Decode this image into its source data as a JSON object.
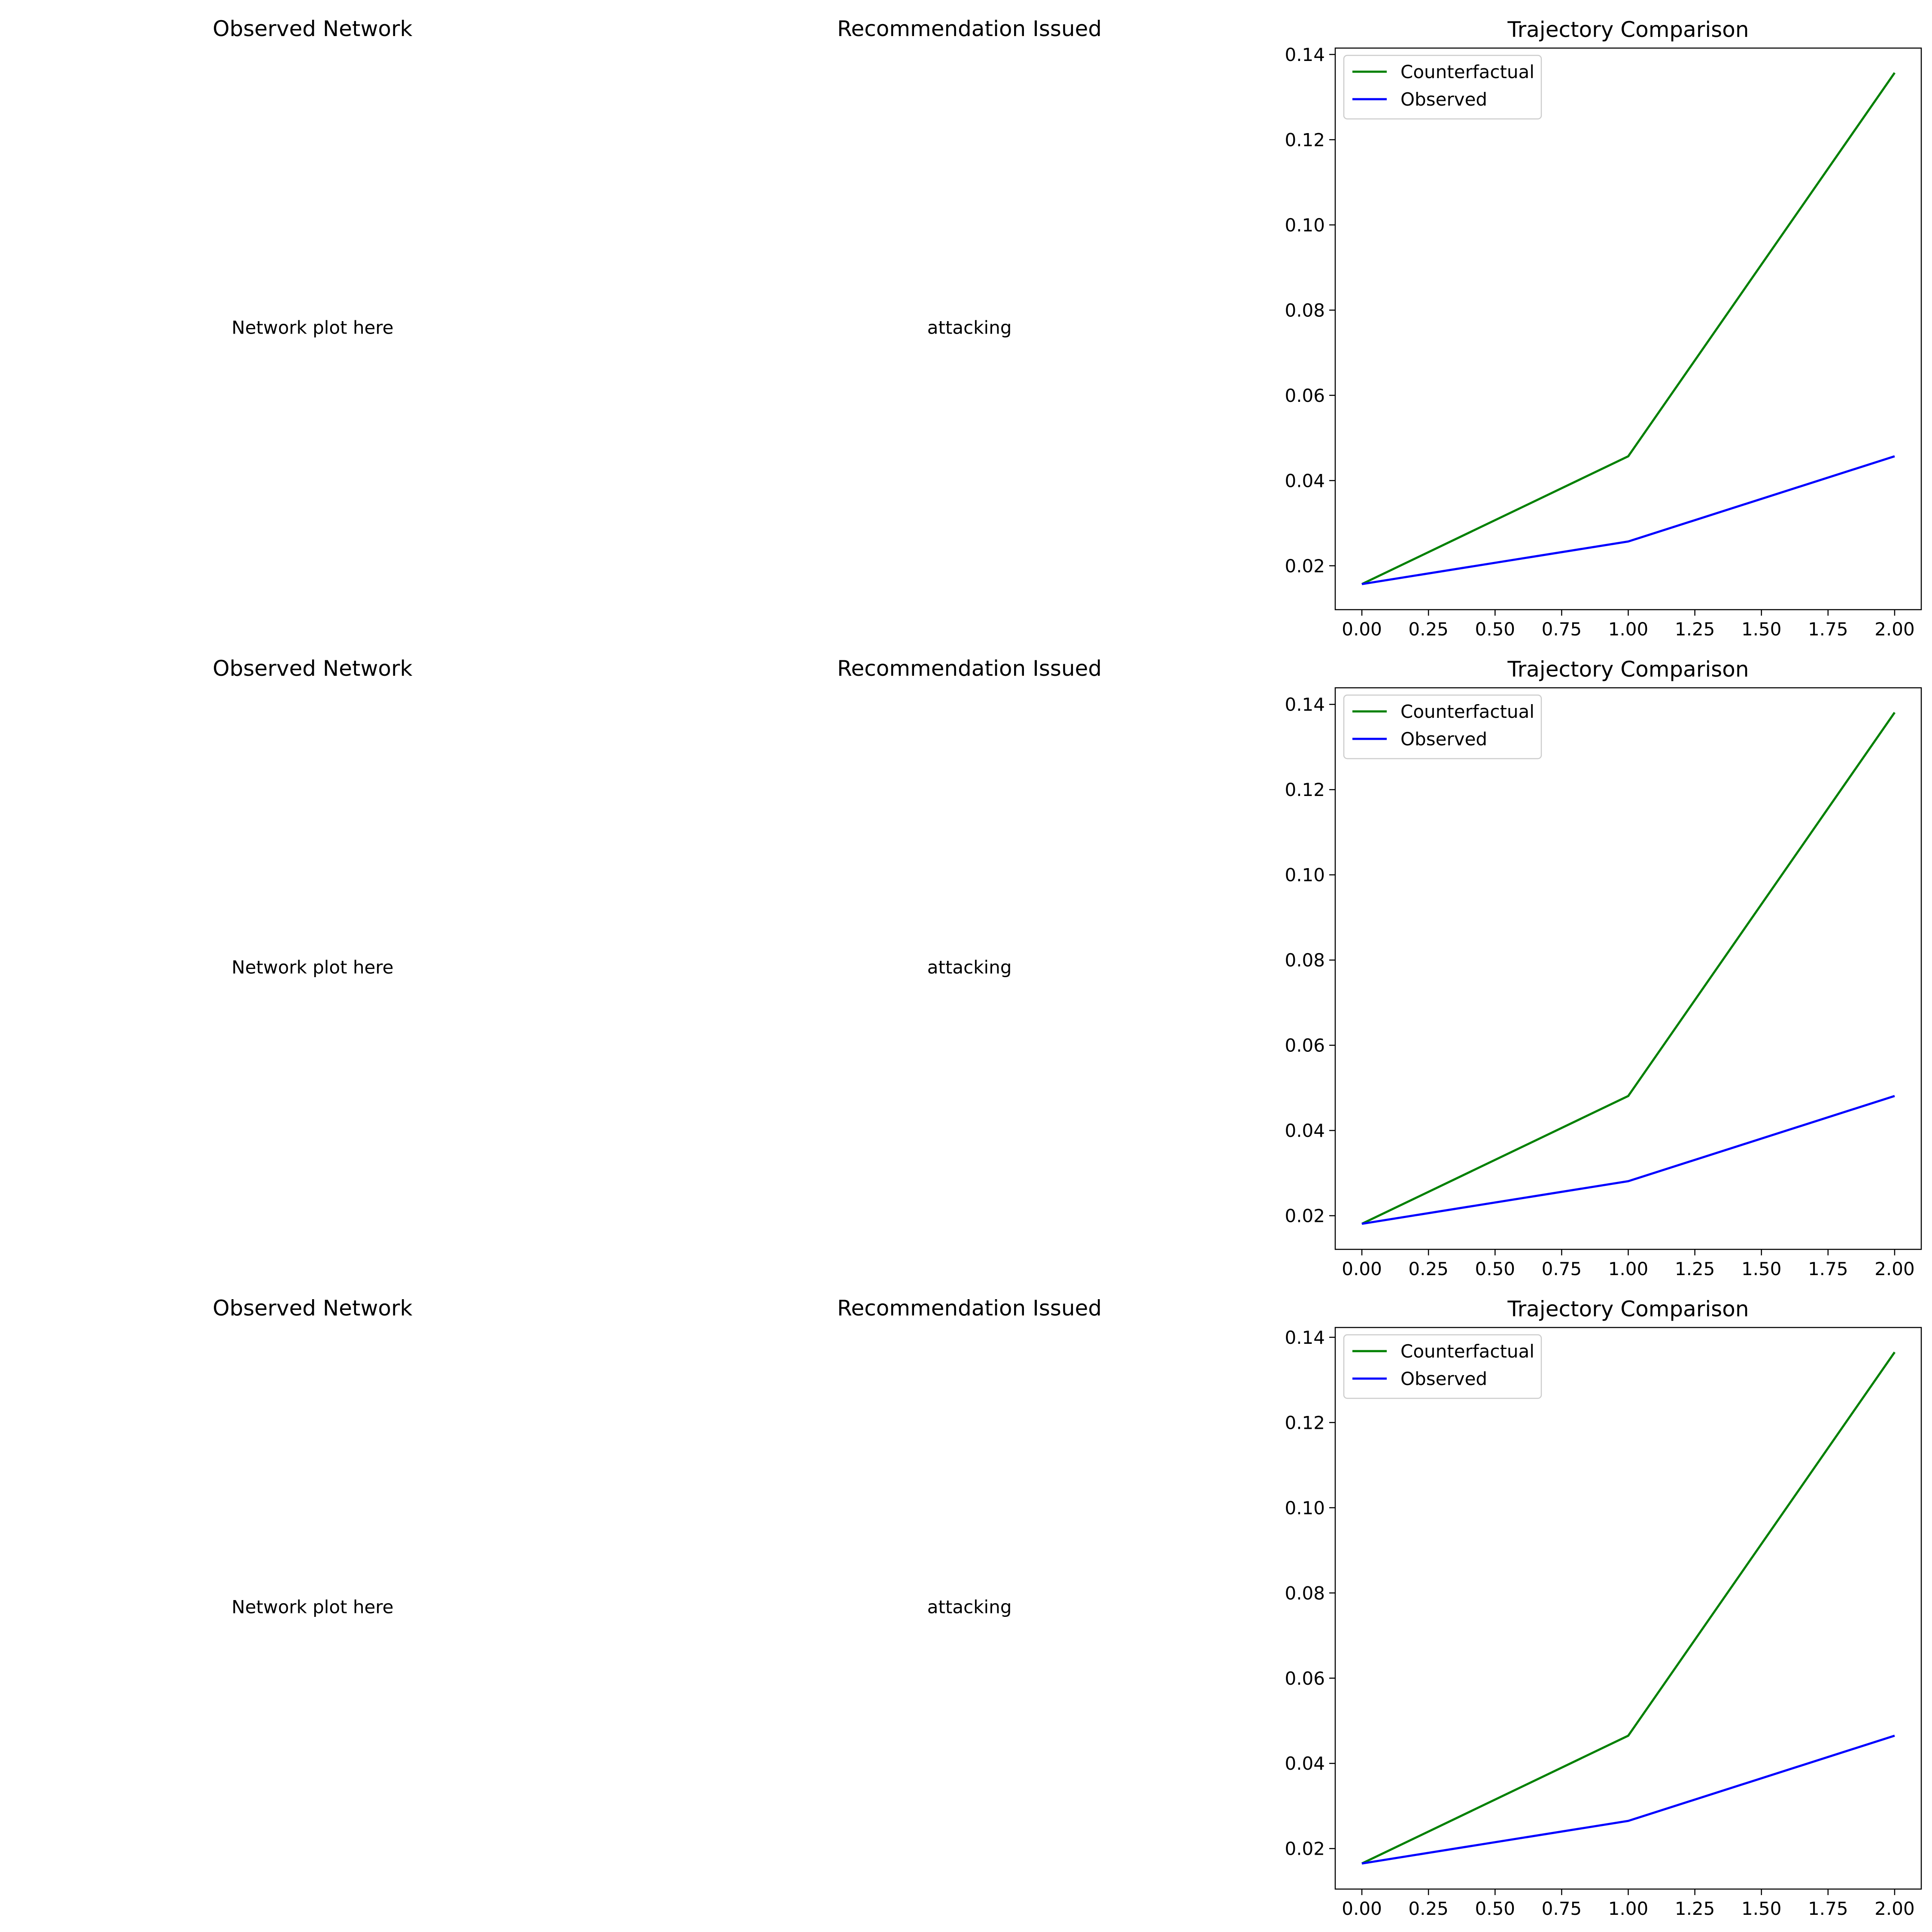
{
  "rows": [
    {
      "network": {
        "title": "Observed Network",
        "text": "Network plot here"
      },
      "recommendation": {
        "title": "Recommendation Issued",
        "text": "attacking"
      },
      "chart_data": {
        "type": "line",
        "title": "Trajectory Comparison",
        "xlabel": "",
        "ylabel": "",
        "xlim": [
          -0.1,
          2.1
        ],
        "ylim": [
          0.0097,
          0.1415
        ],
        "xticks": [
          "0.00",
          "0.25",
          "0.50",
          "0.75",
          "1.00",
          "1.25",
          "1.50",
          "1.75",
          "2.00"
        ],
        "yticks": [
          "0.02",
          "0.04",
          "0.06",
          "0.08",
          "0.10",
          "0.12",
          "0.14"
        ],
        "grid": false,
        "legend_position": "top-left",
        "series": [
          {
            "name": "Counterfactual",
            "color": "#008000",
            "x": [
              0,
              1,
              2
            ],
            "y": [
              0.0157,
              0.0457,
              0.1357
            ]
          },
          {
            "name": "Observed",
            "color": "#0000ff",
            "x": [
              0,
              1,
              2
            ],
            "y": [
              0.0157,
              0.0257,
              0.0457
            ]
          }
        ]
      }
    },
    {
      "network": {
        "title": "Observed Network",
        "text": "Network plot here"
      },
      "recommendation": {
        "title": "Recommendation Issued",
        "text": "attacking"
      },
      "chart_data": {
        "type": "line",
        "title": "Trajectory Comparison",
        "xlabel": "",
        "ylabel": "",
        "xlim": [
          -0.1,
          2.1
        ],
        "ylim": [
          0.0121,
          0.1439
        ],
        "xticks": [
          "0.00",
          "0.25",
          "0.50",
          "0.75",
          "1.00",
          "1.25",
          "1.50",
          "1.75",
          "2.00"
        ],
        "yticks": [
          "0.02",
          "0.04",
          "0.06",
          "0.08",
          "0.10",
          "0.12",
          "0.14"
        ],
        "grid": false,
        "legend_position": "top-left",
        "series": [
          {
            "name": "Counterfactual",
            "color": "#008000",
            "x": [
              0,
              1,
              2
            ],
            "y": [
              0.0181,
              0.0481,
              0.1381
            ]
          },
          {
            "name": "Observed",
            "color": "#0000ff",
            "x": [
              0,
              1,
              2
            ],
            "y": [
              0.0181,
              0.0281,
              0.0481
            ]
          }
        ]
      }
    },
    {
      "network": {
        "title": "Observed Network",
        "text": "Network plot here"
      },
      "recommendation": {
        "title": "Recommendation Issued",
        "text": "attacking"
      },
      "chart_data": {
        "type": "line",
        "title": "Trajectory Comparison",
        "xlabel": "",
        "ylabel": "",
        "xlim": [
          -0.1,
          2.1
        ],
        "ylim": [
          0.0105,
          0.1423
        ],
        "xticks": [
          "0.00",
          "0.25",
          "0.50",
          "0.75",
          "1.00",
          "1.25",
          "1.50",
          "1.75",
          "2.00"
        ],
        "yticks": [
          "0.02",
          "0.04",
          "0.06",
          "0.08",
          "0.10",
          "0.12",
          "0.14"
        ],
        "grid": false,
        "legend_position": "top-left",
        "series": [
          {
            "name": "Counterfactual",
            "color": "#008000",
            "x": [
              0,
              1,
              2
            ],
            "y": [
              0.0165,
              0.0465,
              0.1365
            ]
          },
          {
            "name": "Observed",
            "color": "#0000ff",
            "x": [
              0,
              1,
              2
            ],
            "y": [
              0.0165,
              0.0265,
              0.0465
            ]
          }
        ]
      }
    }
  ]
}
